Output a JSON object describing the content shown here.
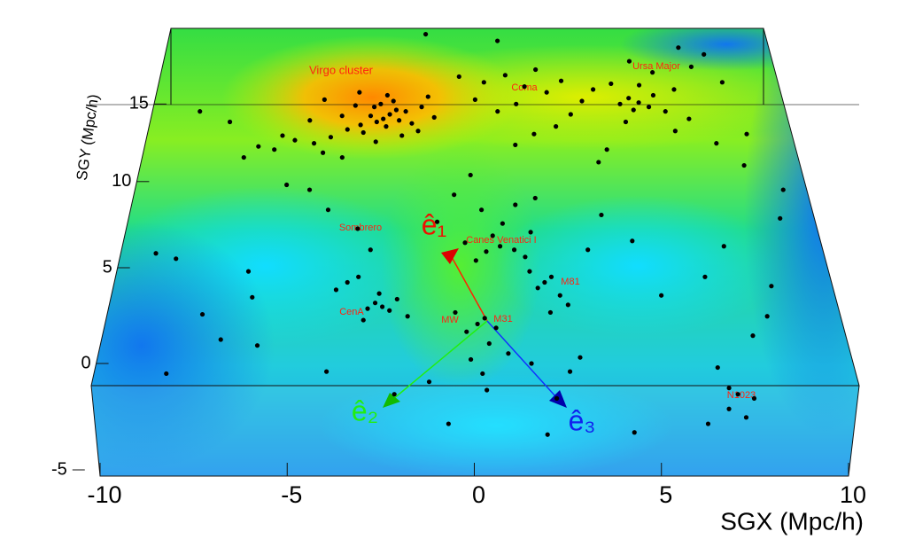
{
  "chart_data": {
    "type": "scatter",
    "x_label": "SGX (Mpc/h)",
    "y_label": "SGY (Mpc/h)",
    "xlim": [
      -10,
      10
    ],
    "xticks": [
      -10,
      -5,
      0,
      5,
      10
    ],
    "ylim": [
      -5,
      20.4
    ],
    "yticks": [
      -5,
      0,
      5,
      10,
      15
    ],
    "color": "#000000",
    "annotations": [
      "Virgo cluster",
      "Coma",
      "Ursa Major",
      "Sombrero",
      "Canes Venatici I",
      "M81",
      "CenA",
      "MW",
      "M31",
      "N1023"
    ],
    "vectors": [
      "ê₁",
      "ê₂",
      "ê₃"
    ],
    "x": [
      -2.7,
      -2.5,
      -2.9,
      -2.3,
      -3.1,
      -2.6,
      -2.2,
      -3.4,
      -2.0,
      -2.8,
      -3.0,
      -2.4,
      -3.6,
      -1.8,
      -3.3,
      -2.1,
      -4.0,
      -1.5,
      -2.6,
      -3.8,
      -4.3,
      -1.6,
      -4.6,
      -3.5,
      -1.3,
      -5.0,
      -4.8,
      -2.9,
      -1.1,
      -5.4,
      -5.8,
      -6.0,
      -4.5,
      -3.9,
      -6.5,
      -6.9,
      -7.5,
      -8.5,
      0.5,
      1.2,
      1.8,
      0.2,
      2.5,
      3.0,
      1.5,
      -0.3,
      2.2,
      3.6,
      0.9,
      3.2,
      2.7,
      4.0,
      1.0,
      -1.4,
      2.0,
      1.4,
      5.4,
      5.1,
      5.7,
      5.2,
      5.9,
      4.8,
      5.5,
      6.2,
      4.6,
      6.0,
      5.3,
      6.6,
      4.9,
      6.4,
      7.3,
      7.8,
      8.2,
      7.0,
      8.6,
      8.3,
      7.6,
      6.9,
      4.2,
      3.9,
      0.4,
      0.8,
      0.1,
      1.2,
      0.6,
      -0.2,
      1.5,
      0.9,
      0.3,
      1.3,
      -0.5,
      1.9,
      0.0,
      -1.0,
      1.7,
      2.0,
      2.2,
      1.8,
      2.4,
      1.6,
      2.6,
      2.1,
      0.1,
      0.3,
      -0.2,
      0.6,
      -0.5,
      0.4,
      0.9,
      -0.1,
      0.2,
      1.5,
      2.8,
      2.5,
      -1.2,
      0.3,
      -2.5,
      -2.7,
      -2.3,
      -2.9,
      -2.1,
      -2.6,
      -3.5,
      -3.8,
      -3.2,
      -1.8,
      -3.0,
      -3.3,
      -4.2,
      -4.8,
      -5.5,
      -6.3,
      -6.1,
      -7.4,
      -8.4,
      -9.0,
      -6.8,
      -5.8,
      -3.9,
      -8.1,
      -2.9,
      3.3,
      3.8,
      4.6,
      5.2,
      6.5,
      7.2,
      8.3,
      8.0,
      7.5,
      9.0,
      9.3,
      6.4,
      6.8,
      6.6,
      7.2,
      6.5,
      6.9,
      4.0,
      5.9,
      2.1,
      1.8,
      -0.7,
      -2.1
    ],
    "values": [
      14.0,
      14.3,
      13.8,
      14.6,
      14.2,
      13.5,
      13.9,
      13.6,
      14.5,
      15.0,
      14.8,
      15.2,
      14.9,
      13.7,
      13.1,
      12.9,
      14.2,
      14.8,
      15.6,
      13.3,
      12.8,
      13.2,
      15.3,
      15.8,
      15.5,
      13.9,
      12.4,
      12.5,
      14.1,
      12.6,
      12.9,
      12.0,
      11.8,
      11.5,
      12.2,
      11.5,
      13.8,
      14.5,
      16.5,
      17.0,
      16.2,
      15.3,
      15.8,
      16.6,
      15.0,
      16.9,
      17.4,
      15.2,
      14.5,
      14.3,
      13.5,
      16.0,
      19.5,
      20.0,
      13.0,
      12.3,
      15.1,
      15.4,
      14.8,
      14.6,
      15.6,
      15.0,
      16.3,
      14.5,
      16.4,
      17.2,
      18.0,
      16.0,
      13.8,
      13.2,
      17.6,
      18.5,
      16.5,
      19.0,
      13.0,
      11.0,
      12.4,
      14.0,
      12.0,
      11.2,
      5.9,
      6.2,
      5.4,
      6.0,
      6.8,
      6.4,
      5.6,
      7.5,
      8.3,
      8.6,
      9.2,
      9.0,
      10.4,
      7.6,
      7.0,
      4.2,
      4.5,
      3.9,
      3.5,
      4.8,
      3.0,
      2.6,
      2.0,
      2.3,
      1.6,
      1.8,
      2.6,
      1.0,
      0.5,
      0.2,
      -0.5,
      0.0,
      0.3,
      -0.4,
      -0.9,
      -1.3,
      2.9,
      3.1,
      2.7,
      2.8,
      3.3,
      3.6,
      4.2,
      3.8,
      4.5,
      2.4,
      2.2,
      7.2,
      8.3,
      9.5,
      9.8,
      4.8,
      3.4,
      2.5,
      5.5,
      5.8,
      1.2,
      0.9,
      -0.4,
      -0.5,
      6.0,
      6.0,
      8.0,
      6.5,
      3.5,
      4.5,
      6.2,
      4.0,
      2.4,
      1.4,
      7.8,
      9.5,
      -0.2,
      -1.5,
      -1.2,
      -1.7,
      -2.2,
      -2.6,
      -3.3,
      -2.9,
      -1.7,
      -3.4,
      -2.9,
      -1.5
    ]
  }
}
